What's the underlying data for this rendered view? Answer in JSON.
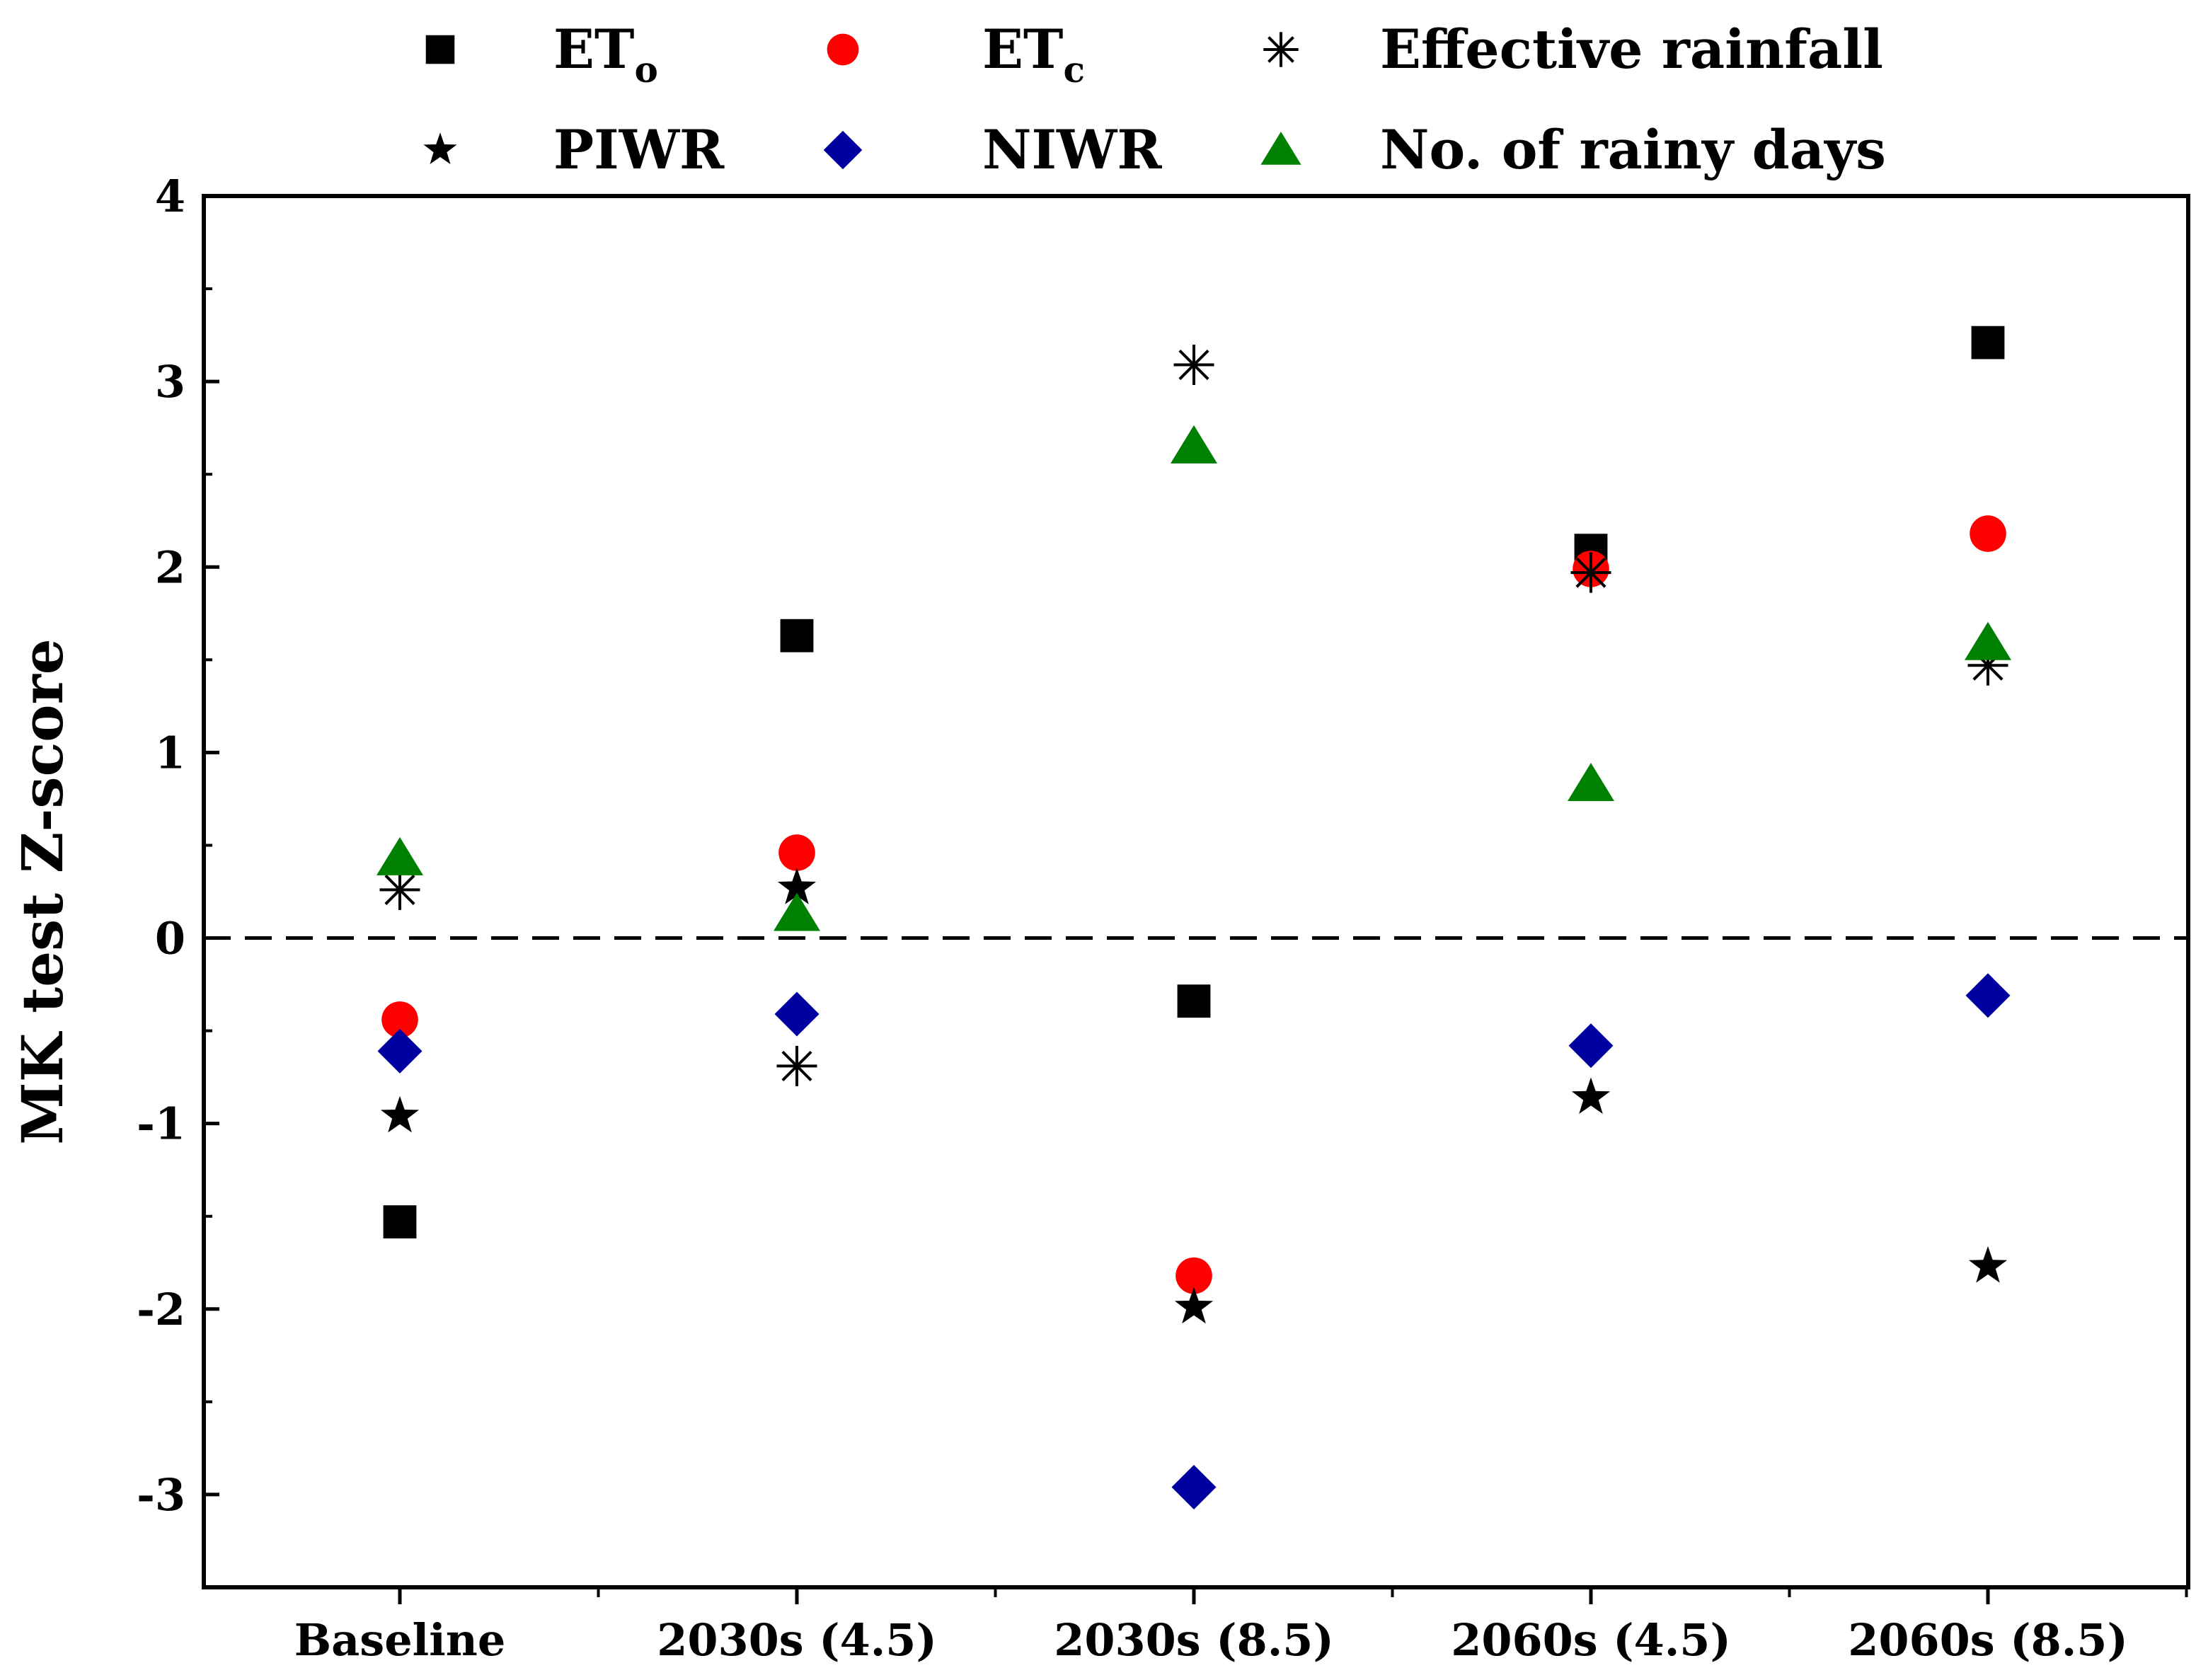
{
  "chart_data": {
    "type": "scatter",
    "title": "",
    "xlabel": "",
    "ylabel": "MK test Z-score",
    "categories": [
      "Baseline",
      "2030s (4.5)",
      "2030s (8.5)",
      "2060s (4.5)",
      "2060s (8.5)"
    ],
    "ylim": [
      -3.5,
      4
    ],
    "yticks": [
      -3,
      -2,
      -1,
      0,
      1,
      2,
      3,
      4
    ],
    "reference_line": {
      "y": 0,
      "style": "dashed"
    },
    "legend_position": "top",
    "series": [
      {
        "name": "ET",
        "subscript": "o",
        "marker": "square",
        "color": "#000000",
        "values": [
          -1.53,
          1.63,
          -0.34,
          2.09,
          3.21
        ]
      },
      {
        "name": "ET",
        "subscript": "c",
        "marker": "circle",
        "color": "#ff0000",
        "values": [
          -0.44,
          0.46,
          -1.82,
          1.99,
          2.18
        ]
      },
      {
        "name": "Effective rainfall",
        "subscript": "",
        "marker": "asterisk",
        "color": "#000000",
        "values": [
          0.26,
          -0.69,
          3.09,
          1.97,
          1.47
        ]
      },
      {
        "name": "PIWR",
        "subscript": "",
        "marker": "star",
        "color": "#000000",
        "values": [
          -0.96,
          0.27,
          -1.99,
          -0.86,
          -1.77
        ]
      },
      {
        "name": "NIWR",
        "subscript": "",
        "marker": "diamond",
        "color": "#0000a0",
        "values": [
          -0.61,
          -0.41,
          -2.96,
          -0.58,
          -0.31
        ]
      },
      {
        "name": "No. of rainy days",
        "subscript": "",
        "marker": "triangle",
        "color": "#008000",
        "values": [
          0.43,
          0.13,
          2.65,
          0.83,
          1.59
        ]
      }
    ]
  }
}
